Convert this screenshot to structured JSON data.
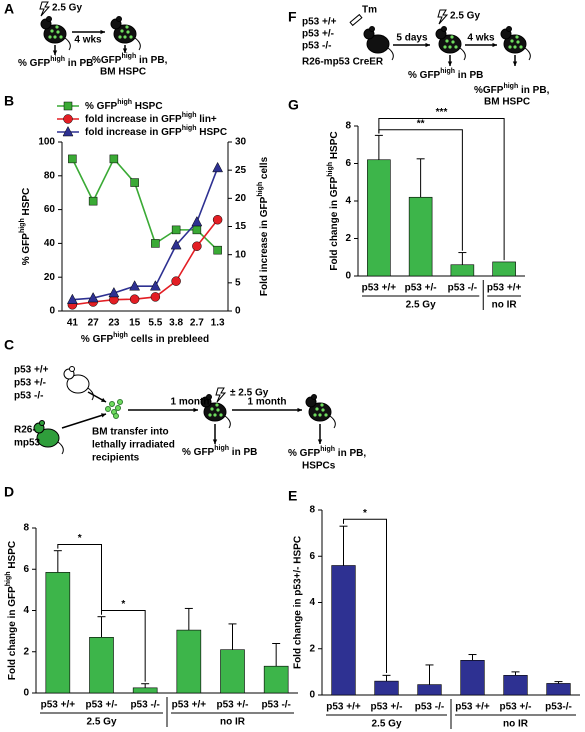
{
  "diagrams": {
    "A": {
      "panel": "A",
      "dose": "2.5 Gy",
      "arrow": "4 wks",
      "left": [
        "% GFP",
        "high",
        " in PB"
      ],
      "right1": [
        "%GFP",
        "high",
        " in PB,"
      ],
      "right2": "BM HSPC"
    },
    "F": {
      "panel": "F",
      "genotypes": [
        "p53 +/+",
        "p53 +/-",
        "p53 -/-"
      ],
      "strain": "R26-mp53 CreER",
      "drug": "Tm",
      "dose": "2.5 Gy",
      "arrow1": "5 days",
      "arrow2": "4 wks",
      "mid": [
        "% GFP",
        "high",
        " in PB"
      ],
      "right1": [
        "%GFP",
        "high",
        " in PB,"
      ],
      "right2": "BM HSPC"
    },
    "C": {
      "panel": "C",
      "genotypes": [
        "p53 +/+",
        "p53 +/-",
        "p53 -/-"
      ],
      "strain1": "R26-",
      "strain2": "mp53",
      "transfer": [
        "BM transfer into",
        "lethally irradiated",
        "recipients"
      ],
      "arrow1": "1 month",
      "dose": "± 2.5 Gy",
      "arrow2": "1 month",
      "mid": [
        "% GFP",
        "high",
        " in PB"
      ],
      "right1": [
        "% GFP",
        "high",
        " in PB,"
      ],
      "right2": "HSPCs"
    }
  },
  "chart_data": [
    {
      "panel": "B",
      "type": "line",
      "categories": [
        "41",
        "27",
        "23",
        "15",
        "5.5",
        "3.8",
        "2.7",
        "1.3"
      ],
      "xlabel": [
        "% GFP",
        "high",
        " cells in prebleed"
      ],
      "ylabel": [
        "% GFP",
        "high",
        " HSPC"
      ],
      "y2label": [
        "Fold increase in GFP",
        "high",
        " cells"
      ],
      "ylim": [
        0,
        100
      ],
      "yticks": [
        0,
        20,
        40,
        60,
        80,
        100
      ],
      "y2lim": [
        0,
        30
      ],
      "y2ticks": [
        0,
        5,
        10,
        15,
        20,
        25,
        30
      ],
      "legend": "top",
      "series": [
        {
          "name": [
            "% GFP",
            "high",
            " HSPC"
          ],
          "color": "#3aaa35",
          "marker": "square",
          "values": [
            90,
            65,
            90,
            76,
            40,
            48,
            48,
            36
          ]
        },
        {
          "name": [
            "fold increase in GFP",
            "high",
            " lin+"
          ],
          "color": "#e31e24",
          "marker": "circle",
          "axis": "y2",
          "values": [
            1.1,
            1.6,
            2,
            2.1,
            2.5,
            5.3,
            11.5,
            16.2
          ]
        },
        {
          "name": [
            "fold increase in GFP",
            "high",
            " HSPC"
          ],
          "color": "#2e3192",
          "marker": "triangle",
          "axis": "y2",
          "values": [
            2,
            2.3,
            3.2,
            4.4,
            4.4,
            11.7,
            15.8,
            25.4
          ]
        }
      ]
    },
    {
      "panel": "G",
      "type": "bar",
      "color": "#3db54a",
      "ylabel": [
        "Fold change in GFP",
        "high",
        " HSPC"
      ],
      "categories": [
        "p53 +/+",
        "p53 +/-",
        "p53 -/-",
        "p53 +/+"
      ],
      "groups": [
        "2.5 Gy",
        "2.5 Gy",
        "2.5 Gy",
        "no IR"
      ],
      "values": [
        6.2,
        4.2,
        0.6,
        0.75
      ],
      "errors": [
        1.3,
        2.05,
        0.65,
        null
      ],
      "ylim": [
        0,
        8
      ],
      "yticks": [
        0,
        2,
        4,
        6,
        8
      ],
      "significance": [
        {
          "label": "**",
          "from": 0,
          "to": 2
        },
        {
          "label": "***",
          "from": 0,
          "to": 3
        }
      ]
    },
    {
      "panel": "D",
      "type": "bar",
      "color": "#3db54a",
      "ylabel": [
        "Fold change in GFP",
        "high",
        " HSPC"
      ],
      "categories": [
        "p53 +/+",
        "p53 +/-",
        "p53 -/-",
        "p53 +/+",
        "p53 +/-",
        "p53 -/-"
      ],
      "groups": [
        "2.5 Gy",
        "2.5 Gy",
        "2.5 Gy",
        "no IR",
        "no IR",
        "no IR"
      ],
      "values": [
        5.85,
        2.7,
        0.25,
        3.05,
        2.1,
        1.3
      ],
      "errors": [
        1.05,
        1,
        0.2,
        1.05,
        1.25,
        1.1
      ],
      "ylim": [
        0,
        8
      ],
      "yticks": [
        0,
        2,
        4,
        6,
        8
      ],
      "significance": [
        {
          "label": "*",
          "from": 0,
          "to": 1
        },
        {
          "label": "*",
          "from": 1,
          "to": 2
        }
      ]
    },
    {
      "panel": "E",
      "type": "bar",
      "color": "#2e3192",
      "ylabel": "Fold change in p53+/- HSPC",
      "categories": [
        "p53 +/+",
        "p53 +/-",
        "p53 -/-",
        "p53 +/+",
        "p53 +/-",
        "p53-/-"
      ],
      "groups": [
        "2.5 Gy",
        "2.5 Gy",
        "2.5 Gy",
        "no IR",
        "no IR",
        "no IR"
      ],
      "values": [
        5.6,
        0.6,
        0.45,
        1.5,
        0.85,
        0.5
      ],
      "errors": [
        1.7,
        0.25,
        0.85,
        0.25,
        0.15,
        0.08
      ],
      "ylim": [
        0,
        8
      ],
      "yticks": [
        0,
        2,
        4,
        6,
        8
      ],
      "significance": [
        {
          "label": "*",
          "from": 0,
          "to": 1
        }
      ]
    }
  ]
}
